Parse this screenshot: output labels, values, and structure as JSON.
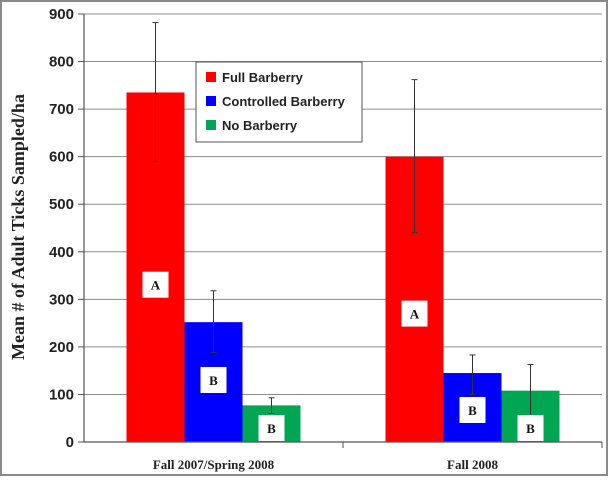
{
  "chart_data": {
    "type": "bar",
    "title": "",
    "xlabel": "",
    "ylabel": "Mean # of Adult Ticks Sampled/ha",
    "ylim": [
      0,
      900
    ],
    "yticks": [
      "0",
      "100",
      "200",
      "300",
      "400",
      "500",
      "600",
      "700",
      "800",
      "900"
    ],
    "grid": "horizontal",
    "legend_position": "top-center",
    "categories": [
      "Fall 2007/Spring 2008",
      "Fall 2008"
    ],
    "series": [
      {
        "name": "Full Barberry",
        "color": "#ff0000",
        "values": [
          735,
          600
        ],
        "error_low": [
          590,
          440
        ],
        "error_high": [
          882,
          762
        ],
        "letters": [
          "A",
          "A"
        ]
      },
      {
        "name": "Controlled Barberry",
        "color": "#0000ff",
        "values": [
          252,
          145
        ],
        "error_low": [
          188,
          100
        ],
        "error_high": [
          318,
          183
        ],
        "letters": [
          "B",
          "B"
        ]
      },
      {
        "name": "No Barberry",
        "color": "#00a651",
        "values": [
          77,
          108
        ],
        "error_low": [
          60,
          50
        ],
        "error_high": [
          93,
          163
        ],
        "letters": [
          "B",
          "B"
        ]
      }
    ]
  }
}
